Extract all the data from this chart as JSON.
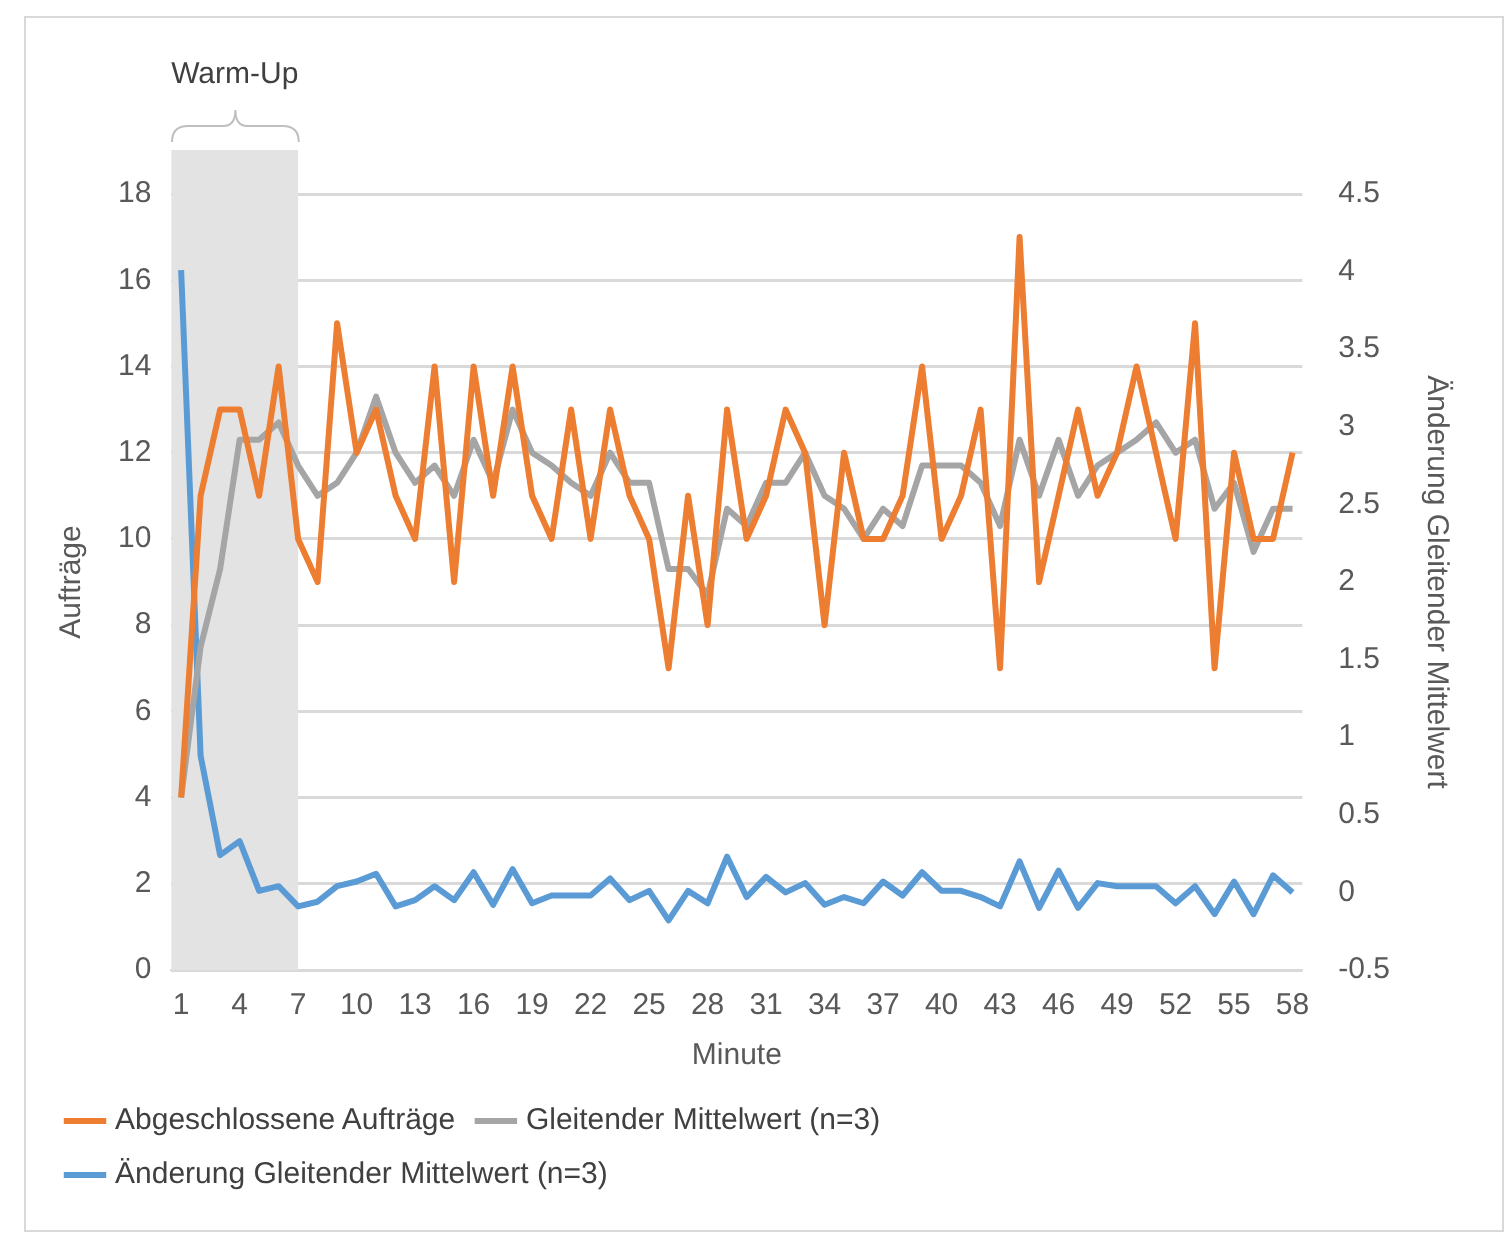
{
  "chart_data": {
    "type": "line",
    "xlabel": "Minute",
    "ylabel": "Aufträge",
    "y2label": "Änderung Gleitender Mittelwert",
    "categories": [
      "1",
      null,
      null,
      "4",
      null,
      null,
      "7",
      null,
      null,
      "10",
      null,
      null,
      "13",
      null,
      null,
      "16",
      null,
      null,
      "19",
      null,
      null,
      "22",
      null,
      null,
      "25",
      null,
      null,
      "28",
      null,
      null,
      "31",
      null,
      null,
      "34",
      null,
      null,
      "37",
      null,
      null,
      "40",
      null,
      null,
      "43",
      null,
      null,
      "46",
      null,
      null,
      "49",
      null,
      null,
      "52",
      null,
      null,
      "55",
      null,
      null,
      "58"
    ],
    "series": [
      {
        "name": "Abgeschlossene Aufträge",
        "color": "#ed7d31",
        "values": [
          4,
          11,
          13,
          13,
          11,
          14,
          10,
          9,
          15,
          12,
          13,
          11,
          10,
          14,
          9,
          14,
          11,
          14,
          11,
          10,
          13,
          10,
          13,
          11,
          10,
          7,
          11,
          8,
          13,
          10,
          11,
          13,
          12,
          8,
          12,
          10,
          10,
          11,
          14,
          10,
          11,
          13,
          7,
          17,
          9,
          11,
          13,
          11,
          12,
          14,
          12,
          10,
          15,
          7,
          12,
          10,
          10,
          12
        ]
      },
      {
        "name": "Gleitender Mittelwert (n=3)",
        "color": "#a5a5a5",
        "values": [
          4,
          7.5,
          9.3,
          12.3,
          12.3,
          12.7,
          11.7,
          11,
          11.3,
          12,
          13.3,
          12,
          11.3,
          11.7,
          11,
          12.3,
          11.3,
          13,
          12,
          11.7,
          11.3,
          11,
          12,
          11.3,
          11.3,
          9.3,
          9.3,
          8.7,
          10.7,
          10.3,
          11.3,
          11.3,
          12,
          11,
          10.7,
          10,
          10.7,
          10.3,
          11.7,
          11.7,
          11.7,
          11.3,
          10.3,
          12.3,
          11,
          12.3,
          11,
          11.7,
          12,
          12.3,
          12.7,
          12,
          12.3,
          10.7,
          11.3,
          9.7,
          10.7,
          10.7
        ]
      },
      {
        "name": "Änderung Gleitender Mittelwert (n=3)",
        "color": "#5b9bd5",
        "axis": "y2",
        "values": [
          4.01,
          0.88,
          0.24,
          0.33,
          0.01,
          0.04,
          -0.09,
          -0.06,
          0.04,
          0.07,
          0.12,
          -0.09,
          -0.05,
          0.04,
          -0.05,
          0.13,
          -0.08,
          0.15,
          -0.07,
          -0.02,
          -0.02,
          -0.02,
          0.09,
          -0.05,
          0.01,
          -0.18,
          0.01,
          -0.07,
          0.23,
          -0.03,
          0.1,
          0,
          0.06,
          -0.08,
          -0.03,
          -0.07,
          0.07,
          -0.02,
          0.13,
          0.01,
          0.01,
          -0.03,
          -0.09,
          0.2,
          -0.1,
          0.14,
          -0.1,
          0.06,
          0.04,
          0.04,
          0.04,
          -0.07,
          0.04,
          -0.14,
          0.07,
          -0.14,
          0.11,
          0
        ]
      }
    ],
    "ylim": [
      0,
      18
    ],
    "yticks": [
      0,
      2,
      4,
      6,
      8,
      10,
      12,
      14,
      16,
      18
    ],
    "y2lim": [
      -0.5,
      4.5
    ],
    "y2ticks": [
      -0.5,
      0,
      0.5,
      1,
      1.5,
      2,
      2.5,
      3,
      3.5,
      4,
      4.5
    ],
    "bands": [
      {
        "axis": "x",
        "from": "1",
        "to": "7",
        "label": "Warm-Up",
        "color": "#e3e3e3"
      }
    ],
    "grid": "y",
    "legend": "bottom",
    "marker": "none",
    "line_style": "solid"
  }
}
